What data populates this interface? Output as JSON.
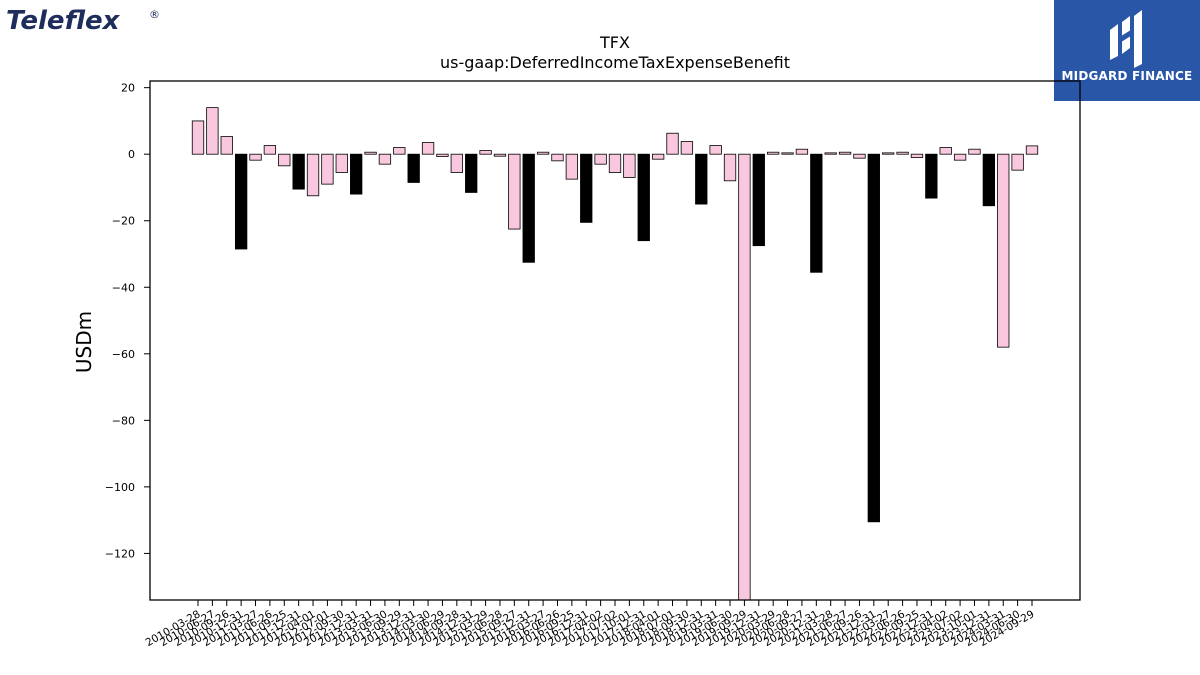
{
  "brand": {
    "left_logo_text": "Teleflex",
    "left_logo_mark": "®",
    "left_logo_color": "#1f2d5c",
    "right_logo_text": "MIDGARD FINANCE",
    "right_logo_bg": "#2a56a8",
    "right_logo_icon": "midgard-m-icon"
  },
  "chart_data": {
    "type": "bar",
    "title": "TFX",
    "subtitle": "us-gaap:DeferredIncomeTaxExpenseBenefit",
    "xlabel": "",
    "ylabel": "USDm",
    "ylim": [
      -134,
      22
    ],
    "yticks": [
      20,
      0,
      -20,
      -40,
      -60,
      -80,
      -100,
      -120
    ],
    "ytick_labels": [
      "20",
      "0",
      "−20",
      "−40",
      "−60",
      "−80",
      "−100",
      "−120"
    ],
    "grid": false,
    "colors": {
      "quarter": "#f9c8de",
      "annual": "#000000",
      "edge": "#000000"
    },
    "categories": [
      "2010-03-28",
      "2010-06-27",
      "2010-09-26",
      "2010-12-31",
      "2011-03-27",
      "2011-06-26",
      "2011-09-25",
      "2011-12-31",
      "2012-04-01",
      "2012-07-01",
      "2012-09-30",
      "2012-12-31",
      "2013-03-31",
      "2013-06-30",
      "2013-09-29",
      "2013-12-31",
      "2014-03-30",
      "2014-06-29",
      "2014-09-28",
      "2014-12-31",
      "2015-03-29",
      "2015-06-28",
      "2015-09-27",
      "2015-12-31",
      "2016-03-27",
      "2016-06-26",
      "2016-09-25",
      "2016-12-31",
      "2017-04-02",
      "2017-07-02",
      "2017-10-01",
      "2017-12-31",
      "2018-04-01",
      "2018-07-01",
      "2018-09-30",
      "2018-12-31",
      "2019-03-31",
      "2019-06-30",
      "2019-09-29",
      "2019-12-31",
      "2020-03-29",
      "2020-06-28",
      "2020-09-27",
      "2020-12-31",
      "2021-03-28",
      "2021-06-27",
      "2021-09-26",
      "2021-12-31",
      "2022-03-27",
      "2022-06-26",
      "2022-09-25",
      "2022-12-31",
      "2023-04-02",
      "2023-07-02",
      "2023-10-01",
      "2023-12-31",
      "2024-03-31",
      "2024-06-30",
      "2024-09-29"
    ],
    "values": [
      10,
      14,
      5.3,
      -28.5,
      -1.8,
      2.6,
      -3.5,
      -10.5,
      -12.5,
      -9,
      -5.5,
      -12,
      0.6,
      -3,
      2,
      -8.5,
      3.5,
      -0.7,
      -5.5,
      -11.5,
      1.1,
      -0.6,
      -22.5,
      -32.5,
      0.6,
      -2,
      -7.5,
      -20.5,
      -3,
      -5.5,
      -7,
      -26,
      -1.5,
      6.3,
      3.8,
      -15,
      2.6,
      -8,
      -134,
      -27.5,
      0.6,
      0.4,
      1.5,
      -35.5,
      0.4,
      0.6,
      -1.2,
      -110.5,
      0.4,
      0.6,
      -1,
      -13.2,
      2,
      -1.8,
      1.5,
      -15.5,
      -58,
      -4.8,
      2.5
    ],
    "bar_type": [
      "q",
      "q",
      "q",
      "a",
      "q",
      "q",
      "q",
      "a",
      "q",
      "q",
      "q",
      "a",
      "q",
      "q",
      "q",
      "a",
      "q",
      "q",
      "q",
      "a",
      "q",
      "q",
      "q",
      "a",
      "q",
      "q",
      "q",
      "a",
      "q",
      "q",
      "q",
      "a",
      "q",
      "q",
      "q",
      "a",
      "q",
      "q",
      "q",
      "a",
      "q",
      "q",
      "q",
      "a",
      "q",
      "q",
      "q",
      "a",
      "q",
      "q",
      "q",
      "a",
      "q",
      "q",
      "q",
      "a",
      "q",
      "q",
      "q"
    ]
  }
}
